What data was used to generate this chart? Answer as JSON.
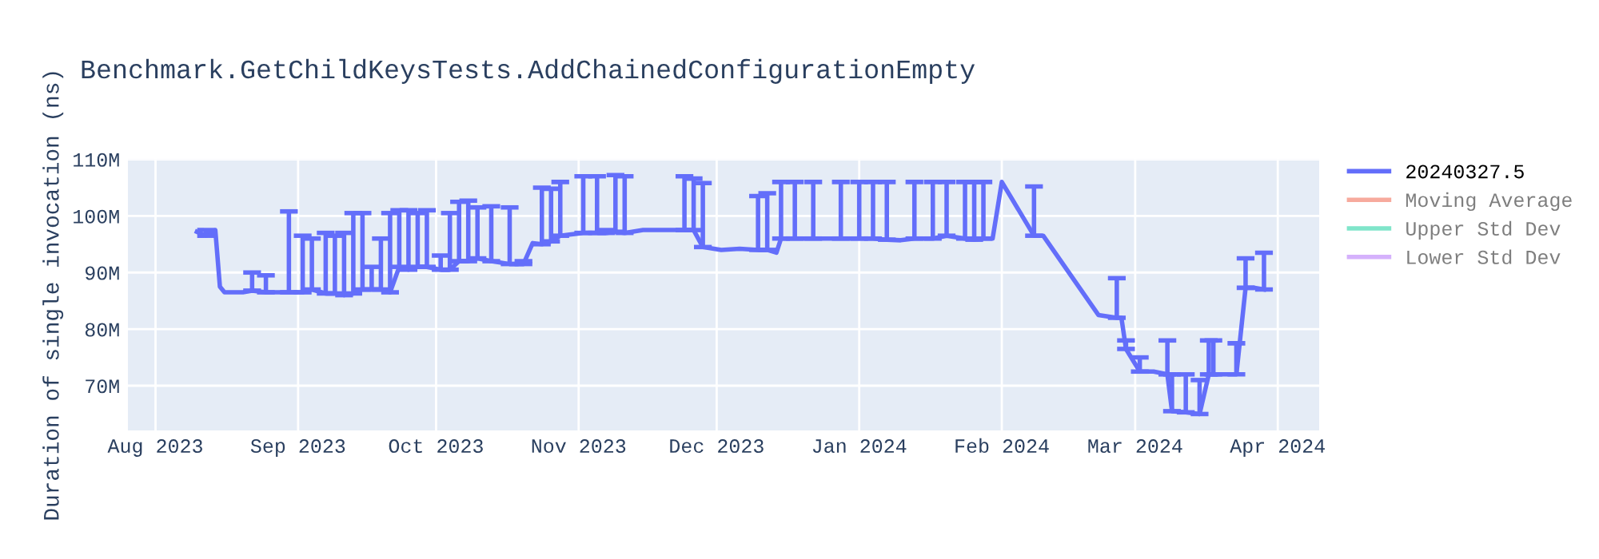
{
  "chart_data": {
    "type": "line",
    "title": "Benchmark.GetChildKeysTests.AddChainedConfigurationEmpty",
    "ylabel": "Duration of single invocation (ns)",
    "x": [
      "2023-08-10",
      "2023-08-12",
      "2023-08-14",
      "2023-08-15",
      "2023-08-16",
      "2023-08-20",
      "2023-08-22",
      "2023-08-25",
      "2023-08-28",
      "2023-08-30",
      "2023-09-02",
      "2023-09-04",
      "2023-09-07",
      "2023-09-09",
      "2023-09-11",
      "2023-09-13",
      "2023-09-15",
      "2023-09-17",
      "2023-09-19",
      "2023-09-21",
      "2023-09-23",
      "2023-09-25",
      "2023-09-27",
      "2023-09-29",
      "2023-10-02",
      "2023-10-04",
      "2023-10-06",
      "2023-10-08",
      "2023-10-10",
      "2023-10-13",
      "2023-10-17",
      "2023-10-20",
      "2023-10-22",
      "2023-10-24",
      "2023-10-26",
      "2023-10-28",
      "2023-10-30",
      "2023-11-02",
      "2023-11-05",
      "2023-11-07",
      "2023-11-09",
      "2023-11-11",
      "2023-11-15",
      "2023-11-20",
      "2023-11-24",
      "2023-11-26",
      "2023-11-28",
      "2023-12-02",
      "2023-12-06",
      "2023-12-10",
      "2023-12-12",
      "2023-12-14",
      "2023-12-15",
      "2023-12-18",
      "2023-12-22",
      "2023-12-28",
      "2024-01-01",
      "2024-01-04",
      "2024-01-07",
      "2024-01-10",
      "2024-01-13",
      "2024-01-17",
      "2024-01-20",
      "2024-01-24",
      "2024-01-26",
      "2024-01-28",
      "2024-01-30",
      "2024-02-01",
      "2024-02-08",
      "2024-02-10",
      "2024-02-22",
      "2024-02-26",
      "2024-02-27",
      "2024-02-28",
      "2024-03-02",
      "2024-03-05",
      "2024-03-08",
      "2024-03-09",
      "2024-03-12",
      "2024-03-15",
      "2024-03-17",
      "2024-03-18",
      "2024-03-23",
      "2024-03-25",
      "2024-03-27",
      "2024-03-29"
    ],
    "series": [
      {
        "name": "20240327.5",
        "color": "#636efa",
        "values": [
          97200000,
          96500000,
          97500000,
          87500000,
          86500000,
          86500000,
          86800000,
          86500000,
          86500000,
          86500000,
          86500000,
          87000000,
          86300000,
          86300000,
          86000000,
          86300000,
          87000000,
          87000000,
          87000000,
          86500000,
          91000000,
          90500000,
          91000000,
          91000000,
          90500000,
          90500000,
          92000000,
          92000000,
          92500000,
          92000000,
          91500000,
          91500000,
          95200000,
          95000000,
          95500000,
          96500000,
          96700000,
          97000000,
          97000000,
          97000000,
          97200000,
          97000000,
          97500000,
          97500000,
          97500000,
          97500000,
          94500000,
          94000000,
          94200000,
          94000000,
          94000000,
          93500000,
          96000000,
          96000000,
          96000000,
          96000000,
          96000000,
          96000000,
          95800000,
          95700000,
          96000000,
          96000000,
          96500000,
          96000000,
          95800000,
          96000000,
          96000000,
          106000000,
          96500000,
          96500000,
          82500000,
          82000000,
          82000000,
          76500000,
          72500000,
          72500000,
          72000000,
          65500000,
          65300000,
          65000000,
          72000000,
          72000000,
          72000000,
          87300000,
          87300000,
          87000000
        ],
        "errors": [
          null,
          [
            96500000,
            97500000
          ],
          null,
          null,
          null,
          null,
          [
            86800000,
            90000000
          ],
          [
            86500000,
            89500000
          ],
          null,
          [
            86500000,
            100800000
          ],
          [
            86500000,
            96500000
          ],
          [
            87000000,
            96000000
          ],
          [
            86300000,
            97000000
          ],
          [
            86300000,
            96500000
          ],
          [
            86000000,
            97000000
          ],
          [
            86300000,
            100500000
          ],
          [
            87000000,
            100500000
          ],
          [
            87000000,
            91000000
          ],
          [
            87000000,
            96000000
          ],
          [
            86500000,
            100500000
          ],
          [
            91000000,
            101000000
          ],
          [
            90500000,
            101000000
          ],
          [
            91000000,
            100500000
          ],
          [
            91000000,
            101000000
          ],
          [
            90500000,
            93000000
          ],
          [
            90500000,
            100500000
          ],
          [
            92000000,
            102500000
          ],
          [
            92000000,
            102700000
          ],
          [
            92500000,
            101500000
          ],
          [
            92000000,
            101700000
          ],
          [
            91500000,
            101500000
          ],
          [
            91500000,
            92000000
          ],
          null,
          [
            95000000,
            105000000
          ],
          [
            95500000,
            104800000
          ],
          [
            96500000,
            106000000
          ],
          null,
          [
            97000000,
            107000000
          ],
          [
            97000000,
            107000000
          ],
          [
            97000000,
            97500000
          ],
          [
            97200000,
            107200000
          ],
          [
            97000000,
            107000000
          ],
          null,
          null,
          [
            97500000,
            107000000
          ],
          [
            97500000,
            106600000
          ],
          [
            94500000,
            105800000
          ],
          null,
          null,
          [
            94000000,
            103500000
          ],
          [
            94000000,
            104000000
          ],
          null,
          [
            96000000,
            106000000
          ],
          [
            96000000,
            106000000
          ],
          [
            96000000,
            106000000
          ],
          [
            96000000,
            106000000
          ],
          [
            96000000,
            106000000
          ],
          [
            96000000,
            106000000
          ],
          [
            95800000,
            106000000
          ],
          null,
          [
            96000000,
            106000000
          ],
          [
            96000000,
            106000000
          ],
          [
            96500000,
            106000000
          ],
          [
            96000000,
            106000000
          ],
          [
            95800000,
            106000000
          ],
          [
            96000000,
            106000000
          ],
          null,
          null,
          [
            96500000,
            105200000
          ],
          null,
          null,
          [
            82000000,
            89000000
          ],
          null,
          [
            76500000,
            78000000
          ],
          [
            72500000,
            75000000
          ],
          null,
          [
            72000000,
            78000000
          ],
          [
            65500000,
            72000000
          ],
          [
            65300000,
            72000000
          ],
          [
            65000000,
            71000000
          ],
          [
            72000000,
            78000000
          ],
          [
            72000000,
            78000000
          ],
          [
            72000000,
            77500000
          ],
          [
            87300000,
            92500000
          ],
          null,
          [
            87000000,
            93500000
          ]
        ]
      },
      {
        "name": "Moving Average",
        "color": "#ef553b",
        "values": [
          null,
          null,
          null,
          null,
          null,
          null,
          null,
          null,
          null,
          null,
          null,
          null,
          null,
          null,
          null,
          null,
          null,
          null,
          null,
          null,
          null,
          null,
          null,
          null,
          null,
          null,
          null,
          null,
          null,
          null,
          null,
          null,
          null,
          null,
          null,
          null,
          null,
          null,
          null,
          null,
          null,
          null,
          null,
          null,
          null,
          null,
          null,
          null,
          null,
          null,
          null,
          null,
          null,
          null,
          null,
          null,
          null,
          null,
          null,
          null,
          null,
          null,
          null,
          null,
          null,
          null,
          null,
          null,
          null,
          null,
          null,
          null,
          null,
          null,
          null,
          null,
          null,
          null,
          null,
          null,
          null,
          null,
          null,
          null,
          null,
          null
        ]
      },
      {
        "name": "Upper Std Dev",
        "color": "#00cc96",
        "values": [
          null,
          null,
          null,
          null,
          null,
          null,
          null,
          null,
          null,
          null,
          null,
          null,
          null,
          null,
          null,
          null,
          null,
          null,
          null,
          null,
          null,
          null,
          null,
          null,
          null,
          null,
          null,
          null,
          null,
          null,
          null,
          null,
          null,
          null,
          null,
          null,
          null,
          null,
          null,
          null,
          null,
          null,
          null,
          null,
          null,
          null,
          null,
          null,
          null,
          null,
          null,
          null,
          null,
          null,
          null,
          null,
          null,
          null,
          null,
          null,
          null,
          null,
          null,
          null,
          null,
          null,
          null,
          null,
          null,
          null,
          null,
          null,
          null,
          null,
          null,
          null,
          null,
          null,
          null,
          null,
          null,
          null,
          null,
          null,
          null,
          null
        ]
      },
      {
        "name": "Lower Std Dev",
        "color": "#ab63fa",
        "values": [
          null,
          null,
          null,
          null,
          null,
          null,
          null,
          null,
          null,
          null,
          null,
          null,
          null,
          null,
          null,
          null,
          null,
          null,
          null,
          null,
          null,
          null,
          null,
          null,
          null,
          null,
          null,
          null,
          null,
          null,
          null,
          null,
          null,
          null,
          null,
          null,
          null,
          null,
          null,
          null,
          null,
          null,
          null,
          null,
          null,
          null,
          null,
          null,
          null,
          null,
          null,
          null,
          null,
          null,
          null,
          null,
          null,
          null,
          null,
          null,
          null,
          null,
          null,
          null,
          null,
          null,
          null,
          null,
          null,
          null,
          null,
          null,
          null,
          null,
          null,
          null,
          null,
          null,
          null,
          null,
          null,
          null,
          null,
          null,
          null,
          null
        ]
      }
    ],
    "xlim": [
      "2023-07-26",
      "2024-04-10"
    ],
    "xticks": [
      {
        "value": "2023-08-01",
        "label": "Aug 2023"
      },
      {
        "value": "2023-09-01",
        "label": "Sep 2023"
      },
      {
        "value": "2023-10-01",
        "label": "Oct 2023"
      },
      {
        "value": "2023-11-01",
        "label": "Nov 2023"
      },
      {
        "value": "2023-12-01",
        "label": "Dec 2023"
      },
      {
        "value": "2024-01-01",
        "label": "Jan 2024"
      },
      {
        "value": "2024-02-01",
        "label": "Feb 2024"
      },
      {
        "value": "2024-03-01",
        "label": "Mar 2024"
      },
      {
        "value": "2024-04-01",
        "label": "Apr 2024"
      }
    ],
    "ylim": [
      62100000,
      110000000
    ],
    "yticks": [
      {
        "value": 70000000,
        "label": "70M"
      },
      {
        "value": 80000000,
        "label": "80M"
      },
      {
        "value": 90000000,
        "label": "90M"
      },
      {
        "value": 100000000,
        "label": "100M"
      },
      {
        "value": 110000000,
        "label": "110M"
      }
    ],
    "grid": true,
    "legend": "right",
    "marker": "none",
    "line_style": "solid"
  }
}
